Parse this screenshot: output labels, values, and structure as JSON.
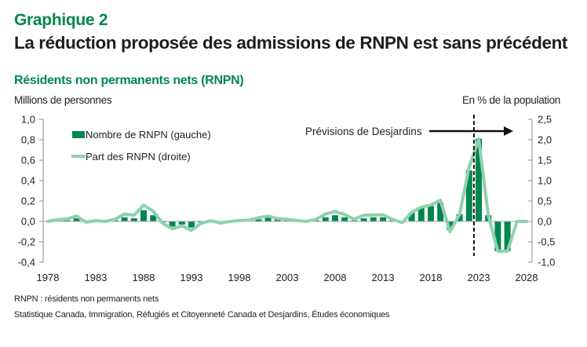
{
  "header": {
    "kicker": "Graphique 2",
    "title": "La réduction proposée des admissions de RNPN est sans précédent",
    "subtitle": "Résidents non permanents nets (RNPN)",
    "left_unit": "Millions de personnes",
    "right_unit": "En % de la population"
  },
  "footer": {
    "note": "RNPN : résidents non permanents nets",
    "source": "Statistique Canada, Immigration, Réfugiés et Citoyenneté Canada et Desjardins, Études économiques"
  },
  "colors": {
    "title_green": "#00874E",
    "bar": "#00874E",
    "line": "#8FD1AE",
    "axis": "#8c8c8c",
    "annotation": "#111111"
  },
  "chart_data": {
    "type": "bar+line",
    "title": "Résidents non permanents nets (RNPN)",
    "x": [
      1978,
      1979,
      1980,
      1981,
      1982,
      1983,
      1984,
      1985,
      1986,
      1987,
      1988,
      1989,
      1990,
      1991,
      1992,
      1993,
      1994,
      1995,
      1996,
      1997,
      1998,
      1999,
      2000,
      2001,
      2002,
      2003,
      2004,
      2005,
      2006,
      2007,
      2008,
      2009,
      2010,
      2011,
      2012,
      2013,
      2014,
      2015,
      2016,
      2017,
      2018,
      2019,
      2020,
      2021,
      2022,
      2023,
      2024,
      2025,
      2026,
      2027,
      2028
    ],
    "xticks": [
      "1978",
      "1983",
      "1988",
      "1993",
      "1998",
      "2003",
      "2008",
      "2013",
      "2018",
      "2023",
      "2028"
    ],
    "xtick_years": [
      1978,
      1983,
      1988,
      1993,
      1998,
      2003,
      2008,
      2013,
      2018,
      2023,
      2028
    ],
    "xlim": [
      1978,
      2028
    ],
    "ylabel_left": "Millions de personnes",
    "ylabel_right": "En % de la population",
    "ylim_left": [
      -0.4,
      1.0
    ],
    "ylim_right": [
      -1.0,
      2.5
    ],
    "yticks_left": [
      "1,0",
      "0,8",
      "0,6",
      "0,4",
      "0,2",
      "0,0",
      "-0,2",
      "-0,4"
    ],
    "yticks_left_values": [
      1.0,
      0.8,
      0.6,
      0.4,
      0.2,
      0.0,
      -0.2,
      -0.4
    ],
    "yticks_right": [
      "2,5",
      "2,0",
      "1,5",
      "1,0",
      "0,5",
      "0,0",
      "-0,5",
      "-1,0"
    ],
    "yticks_right_values": [
      2.5,
      2.0,
      1.5,
      1.0,
      0.5,
      0.0,
      -0.5,
      -1.0
    ],
    "grid": false,
    "legend_position": "top-left",
    "series": [
      {
        "name": "Nombre de RNPN (gauche)",
        "type": "bar",
        "axis": "left",
        "values": [
          0.0,
          0.005,
          0.01,
          0.03,
          -0.005,
          0.005,
          0.0,
          0.01,
          0.04,
          0.03,
          0.11,
          0.06,
          -0.01,
          -0.05,
          -0.03,
          -0.06,
          -0.01,
          0.005,
          -0.005,
          0.0,
          0.005,
          0.01,
          0.02,
          0.04,
          0.02,
          0.01,
          0.005,
          0.0,
          0.01,
          0.04,
          0.06,
          0.04,
          0.01,
          0.03,
          0.04,
          0.04,
          0.01,
          -0.01,
          0.085,
          0.13,
          0.15,
          0.18,
          -0.085,
          0.07,
          0.5,
          0.81,
          0.06,
          -0.29,
          -0.29,
          0.0,
          0.0
        ]
      },
      {
        "name": "Part des RNPN (droite)",
        "type": "line",
        "axis": "right",
        "values": [
          0.0,
          0.04,
          0.06,
          0.13,
          -0.02,
          0.02,
          0.0,
          0.05,
          0.18,
          0.15,
          0.4,
          0.25,
          -0.05,
          -0.18,
          -0.11,
          -0.22,
          -0.05,
          0.02,
          -0.04,
          0.0,
          0.02,
          0.03,
          0.09,
          0.13,
          0.07,
          0.05,
          0.02,
          0.0,
          0.05,
          0.18,
          0.24,
          0.17,
          0.05,
          0.15,
          0.16,
          0.16,
          0.05,
          -0.03,
          0.22,
          0.35,
          0.4,
          0.52,
          -0.25,
          0.17,
          1.33,
          2.02,
          0.15,
          -0.73,
          -0.73,
          0.0,
          0.0
        ]
      }
    ],
    "annotations": [
      {
        "text": "Prévisions de Desjardins",
        "type": "arrow-right",
        "forecast_start_year": 2022.5
      }
    ]
  }
}
